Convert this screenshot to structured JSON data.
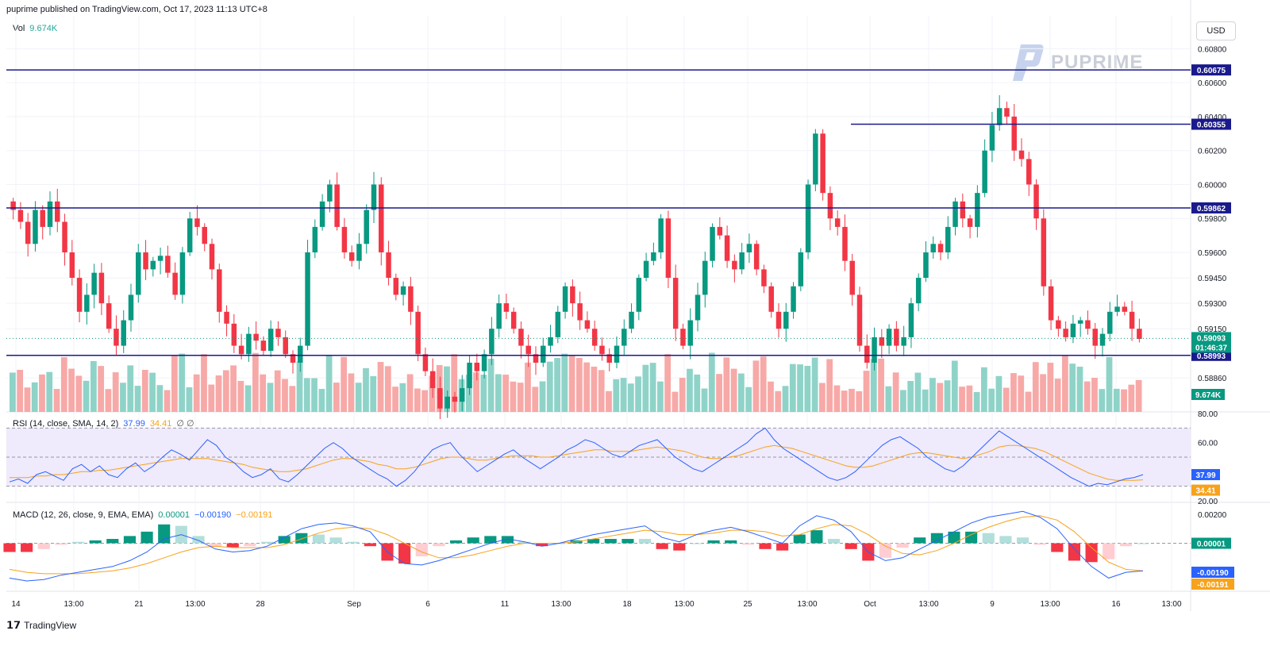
{
  "header": {
    "publisher": "puprime published on TradingView.com, Oct 17, 2023 11:13 UTC+8"
  },
  "volume_legend": {
    "label": "Vol",
    "value": "9.674K"
  },
  "currency_button": "USD",
  "watermark": {
    "text": "PUPRIME"
  },
  "rsi_legend": {
    "label": "RSI (14, close, SMA, 14, 2)",
    "rsi": "37.99",
    "sma": "34.41",
    "extra": "∅ ∅"
  },
  "macd_legend": {
    "label": "MACD (12, 26, close, 9, EMA, EMA)",
    "hist": "0.00001",
    "macd": "−0.00190",
    "signal": "−0.00191"
  },
  "footer": {
    "brand": "TradingView"
  },
  "colors": {
    "up": "#089981",
    "down": "#f23645",
    "line": "#1a1a8c",
    "rsi": "#2962ff",
    "sma": "#f7a21b",
    "rsi_band": "#efeafc"
  },
  "icons": {
    "logo": "puprime-logo-icon",
    "brand": "tradingview-logo-icon"
  },
  "chart_data": [
    {
      "type": "candlestick",
      "price_ticks": [
        "0.60800",
        "0.60600",
        "0.60400",
        "0.60200",
        "0.60000",
        "0.59800",
        "0.59600",
        "0.59450",
        "0.59300",
        "0.59150",
        "0.58860"
      ],
      "ylim": [
        0.5866,
        0.609
      ],
      "x_ticks": [
        "14",
        "13:00",
        "21",
        "13:00",
        "28",
        "Sep",
        "6",
        "11",
        "13:00",
        "18",
        "13:00",
        "25",
        "13:00",
        "Oct",
        "13:00",
        "9",
        "13:00",
        "16",
        "13:00"
      ],
      "horizontal_lines": [
        0.60675,
        0.60355,
        0.59862,
        0.58993
      ],
      "price_labels": [
        "0.60675",
        "0.60355",
        "0.59862",
        "0.58993"
      ],
      "last_price": {
        "value": "0.59093",
        "countdown": "01:46:37"
      },
      "volume_label": "9.674K",
      "ohlc_path": [
        0.5985,
        0.5978,
        0.5965,
        0.5985,
        0.5975,
        0.599,
        0.5978,
        0.596,
        0.5945,
        0.5925,
        0.5935,
        0.5948,
        0.593,
        0.5915,
        0.5905,
        0.592,
        0.5935,
        0.596,
        0.595,
        0.5955,
        0.5958,
        0.5948,
        0.5935,
        0.596,
        0.598,
        0.5975,
        0.5965,
        0.595,
        0.5925,
        0.5918,
        0.5905,
        0.59,
        0.5912,
        0.5908,
        0.5902,
        0.5915,
        0.591,
        0.59,
        0.5895,
        0.5905,
        0.596,
        0.5975,
        0.599,
        0.6,
        0.5975,
        0.596,
        0.5955,
        0.5965,
        0.5985,
        0.6,
        0.596,
        0.5945,
        0.5935,
        0.594,
        0.5925,
        0.59,
        0.589,
        0.588,
        0.5868,
        0.5875,
        0.5872,
        0.588,
        0.5895,
        0.589,
        0.59,
        0.5915,
        0.593,
        0.5925,
        0.5915,
        0.5905,
        0.59,
        0.5895,
        0.5905,
        0.591,
        0.5925,
        0.594,
        0.593,
        0.592,
        0.5915,
        0.5905,
        0.59,
        0.5895,
        0.5905,
        0.5915,
        0.5925,
        0.5945,
        0.5955,
        0.596,
        0.598,
        0.5945,
        0.5915,
        0.5905,
        0.592,
        0.5935,
        0.5955,
        0.5975,
        0.597,
        0.5955,
        0.595,
        0.596,
        0.5965,
        0.595,
        0.594,
        0.5925,
        0.5915,
        0.5925,
        0.594,
        0.596,
        0.6,
        0.603,
        0.5995,
        0.598,
        0.5975,
        0.5955,
        0.5935,
        0.5905,
        0.5895,
        0.591,
        0.5905,
        0.5915,
        0.5905,
        0.591,
        0.593,
        0.5945,
        0.596,
        0.5965,
        0.596,
        0.5975,
        0.599,
        0.598,
        0.5975,
        0.5995,
        0.602,
        0.6035,
        0.6045,
        0.604,
        0.602,
        0.6015,
        0.6,
        0.598,
        0.594,
        0.592,
        0.5915,
        0.591,
        0.5918,
        0.592,
        0.5915,
        0.5905,
        0.5912,
        0.5925,
        0.5928,
        0.5925,
        0.5915,
        0.5909
      ]
    },
    {
      "type": "line",
      "name": "RSI",
      "y_ticks": [
        "80.00",
        "60.00",
        "20.00"
      ],
      "ylim": [
        20,
        80
      ],
      "bands": [
        30,
        50,
        70
      ],
      "values": [
        33,
        35,
        32,
        38,
        40,
        37,
        34,
        42,
        45,
        40,
        44,
        38,
        36,
        42,
        46,
        40,
        44,
        50,
        55,
        52,
        48,
        55,
        62,
        58,
        50,
        46,
        40,
        36,
        38,
        42,
        35,
        33,
        38,
        44,
        50,
        56,
        60,
        56,
        50,
        46,
        42,
        38,
        35,
        30,
        34,
        40,
        48,
        55,
        58,
        60,
        52,
        46,
        40,
        44,
        48,
        52,
        55,
        50,
        46,
        42,
        46,
        50,
        55,
        58,
        62,
        60,
        56,
        52,
        50,
        54,
        58,
        60,
        62,
        56,
        50,
        46,
        42,
        40,
        44,
        48,
        52,
        56,
        60,
        66,
        70,
        62,
        56,
        52,
        48,
        44,
        40,
        36,
        34,
        36,
        40,
        46,
        52,
        58,
        62,
        64,
        60,
        56,
        50,
        46,
        42,
        40,
        44,
        50,
        56,
        62,
        68,
        64,
        60,
        56,
        52,
        48,
        44,
        40,
        36,
        33,
        30,
        32,
        31,
        33,
        35,
        36,
        37.99
      ],
      "sma_values": [
        36,
        36,
        36,
        37,
        37,
        38,
        38,
        39,
        40,
        40,
        41,
        41,
        42,
        43,
        44,
        45,
        46,
        47,
        48,
        49,
        49,
        49,
        49,
        48,
        47,
        46,
        45,
        43,
        42,
        41,
        40,
        40,
        41,
        42,
        44,
        46,
        48,
        49,
        49,
        48,
        47,
        45,
        44,
        42,
        42,
        43,
        45,
        47,
        49,
        50,
        50,
        49,
        48,
        48,
        49,
        50,
        51,
        51,
        51,
        50,
        50,
        51,
        52,
        53,
        54,
        55,
        55,
        54,
        54,
        54,
        55,
        56,
        57,
        56,
        55,
        54,
        52,
        50,
        49,
        49,
        50,
        51,
        53,
        55,
        57,
        58,
        57,
        56,
        54,
        52,
        50,
        48,
        46,
        44,
        43,
        43,
        44,
        46,
        48,
        50,
        52,
        53,
        53,
        52,
        51,
        50,
        49,
        50,
        52,
        54,
        57,
        58,
        58,
        57,
        56,
        54,
        51,
        48,
        45,
        42,
        39,
        37,
        35,
        34,
        34,
        34,
        34.41
      ],
      "rsi_label": "37.99",
      "sma_label": "34.41"
    },
    {
      "type": "bar",
      "name": "MACD",
      "y_ticks": [
        "0.00200",
        "0.00000",
        "-0.00190",
        "-0.00191"
      ],
      "ylim": [
        -0.0032,
        0.0026
      ],
      "macd_values": [
        -0.0024,
        -0.0026,
        -0.0025,
        -0.0022,
        -0.002,
        -0.0018,
        -0.0016,
        -0.0012,
        -0.0006,
        0.0003,
        0.0006,
        0.0002,
        -0.0004,
        -0.0006,
        -0.0005,
        -0.0002,
        0.0004,
        0.001,
        0.0013,
        0.0014,
        0.0012,
        0.0008,
        -0.0006,
        -0.0014,
        -0.0015,
        -0.0012,
        -0.0008,
        -0.0004,
        0.0,
        0.0003,
        0.0001,
        -0.0002,
        0.0,
        0.0003,
        0.0006,
        0.0008,
        0.001,
        0.0012,
        0.0004,
        0.0001,
        0.0006,
        0.0009,
        0.0011,
        0.0008,
        0.0004,
        0.0,
        0.0012,
        0.0019,
        0.0016,
        0.0008,
        -0.0006,
        -0.0012,
        -0.001,
        -0.0004,
        0.0002,
        0.0008,
        0.0014,
        0.0018,
        0.002,
        0.0022,
        0.0018,
        0.001,
        -0.0004,
        -0.0016,
        -0.0024,
        -0.002,
        -0.0019
      ],
      "signal_values": [
        -0.0018,
        -0.002,
        -0.0021,
        -0.0021,
        -0.0021,
        -0.002,
        -0.0019,
        -0.0017,
        -0.0014,
        -0.001,
        -0.0006,
        -0.0003,
        -0.0002,
        -0.0003,
        -0.0003,
        -0.0003,
        -0.0001,
        0.0003,
        0.0007,
        0.001,
        0.0011,
        0.001,
        0.0006,
        0.0,
        -0.0006,
        -0.001,
        -0.001,
        -0.0008,
        -0.0005,
        -0.0002,
        0.0,
        0.0,
        0.0,
        0.0001,
        0.0003,
        0.0005,
        0.0007,
        0.0009,
        0.0008,
        0.0006,
        0.0006,
        0.0007,
        0.0009,
        0.0009,
        0.0008,
        0.0005,
        0.0006,
        0.001,
        0.0013,
        0.0012,
        0.0006,
        -0.0002,
        -0.0007,
        -0.0008,
        -0.0005,
        0.0,
        0.0006,
        0.0011,
        0.0015,
        0.0018,
        0.0019,
        0.0016,
        0.0008,
        -0.0003,
        -0.0013,
        -0.0018,
        -0.0019
      ],
      "labels": {
        "hist": "0.00001",
        "macd": "-0.00190",
        "signal": "-0.00191"
      }
    }
  ]
}
